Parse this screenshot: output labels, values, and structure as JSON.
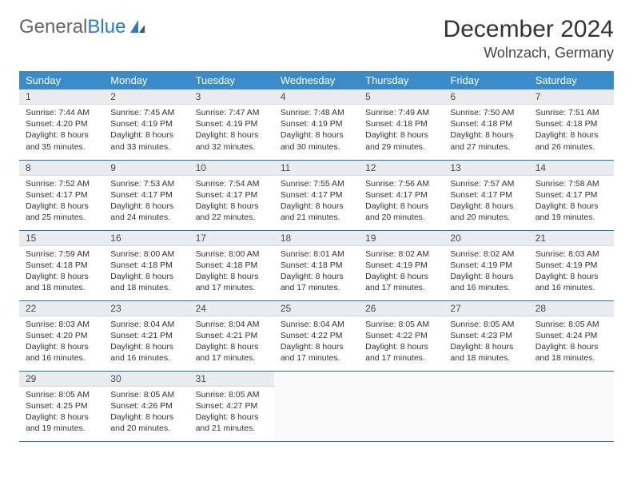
{
  "brand": {
    "part1": "General",
    "part2": "Blue"
  },
  "title": "December 2024",
  "location": "Wolnzach, Germany",
  "colors": {
    "header_bg": "#3b8bc9",
    "header_text": "#ffffff",
    "daynum_bg": "#e9edf0",
    "row_border": "#2b6fa8",
    "brand_blue": "#2b7bbf",
    "brand_gray": "#666666"
  },
  "weekdays": [
    "Sunday",
    "Monday",
    "Tuesday",
    "Wednesday",
    "Thursday",
    "Friday",
    "Saturday"
  ],
  "weeks": [
    [
      {
        "n": "1",
        "sr": "Sunrise: 7:44 AM",
        "ss": "Sunset: 4:20 PM",
        "d1": "Daylight: 8 hours",
        "d2": "and 35 minutes."
      },
      {
        "n": "2",
        "sr": "Sunrise: 7:45 AM",
        "ss": "Sunset: 4:19 PM",
        "d1": "Daylight: 8 hours",
        "d2": "and 33 minutes."
      },
      {
        "n": "3",
        "sr": "Sunrise: 7:47 AM",
        "ss": "Sunset: 4:19 PM",
        "d1": "Daylight: 8 hours",
        "d2": "and 32 minutes."
      },
      {
        "n": "4",
        "sr": "Sunrise: 7:48 AM",
        "ss": "Sunset: 4:19 PM",
        "d1": "Daylight: 8 hours",
        "d2": "and 30 minutes."
      },
      {
        "n": "5",
        "sr": "Sunrise: 7:49 AM",
        "ss": "Sunset: 4:18 PM",
        "d1": "Daylight: 8 hours",
        "d2": "and 29 minutes."
      },
      {
        "n": "6",
        "sr": "Sunrise: 7:50 AM",
        "ss": "Sunset: 4:18 PM",
        "d1": "Daylight: 8 hours",
        "d2": "and 27 minutes."
      },
      {
        "n": "7",
        "sr": "Sunrise: 7:51 AM",
        "ss": "Sunset: 4:18 PM",
        "d1": "Daylight: 8 hours",
        "d2": "and 26 minutes."
      }
    ],
    [
      {
        "n": "8",
        "sr": "Sunrise: 7:52 AM",
        "ss": "Sunset: 4:17 PM",
        "d1": "Daylight: 8 hours",
        "d2": "and 25 minutes."
      },
      {
        "n": "9",
        "sr": "Sunrise: 7:53 AM",
        "ss": "Sunset: 4:17 PM",
        "d1": "Daylight: 8 hours",
        "d2": "and 24 minutes."
      },
      {
        "n": "10",
        "sr": "Sunrise: 7:54 AM",
        "ss": "Sunset: 4:17 PM",
        "d1": "Daylight: 8 hours",
        "d2": "and 22 minutes."
      },
      {
        "n": "11",
        "sr": "Sunrise: 7:55 AM",
        "ss": "Sunset: 4:17 PM",
        "d1": "Daylight: 8 hours",
        "d2": "and 21 minutes."
      },
      {
        "n": "12",
        "sr": "Sunrise: 7:56 AM",
        "ss": "Sunset: 4:17 PM",
        "d1": "Daylight: 8 hours",
        "d2": "and 20 minutes."
      },
      {
        "n": "13",
        "sr": "Sunrise: 7:57 AM",
        "ss": "Sunset: 4:17 PM",
        "d1": "Daylight: 8 hours",
        "d2": "and 20 minutes."
      },
      {
        "n": "14",
        "sr": "Sunrise: 7:58 AM",
        "ss": "Sunset: 4:17 PM",
        "d1": "Daylight: 8 hours",
        "d2": "and 19 minutes."
      }
    ],
    [
      {
        "n": "15",
        "sr": "Sunrise: 7:59 AM",
        "ss": "Sunset: 4:18 PM",
        "d1": "Daylight: 8 hours",
        "d2": "and 18 minutes."
      },
      {
        "n": "16",
        "sr": "Sunrise: 8:00 AM",
        "ss": "Sunset: 4:18 PM",
        "d1": "Daylight: 8 hours",
        "d2": "and 18 minutes."
      },
      {
        "n": "17",
        "sr": "Sunrise: 8:00 AM",
        "ss": "Sunset: 4:18 PM",
        "d1": "Daylight: 8 hours",
        "d2": "and 17 minutes."
      },
      {
        "n": "18",
        "sr": "Sunrise: 8:01 AM",
        "ss": "Sunset: 4:18 PM",
        "d1": "Daylight: 8 hours",
        "d2": "and 17 minutes."
      },
      {
        "n": "19",
        "sr": "Sunrise: 8:02 AM",
        "ss": "Sunset: 4:19 PM",
        "d1": "Daylight: 8 hours",
        "d2": "and 17 minutes."
      },
      {
        "n": "20",
        "sr": "Sunrise: 8:02 AM",
        "ss": "Sunset: 4:19 PM",
        "d1": "Daylight: 8 hours",
        "d2": "and 16 minutes."
      },
      {
        "n": "21",
        "sr": "Sunrise: 8:03 AM",
        "ss": "Sunset: 4:19 PM",
        "d1": "Daylight: 8 hours",
        "d2": "and 16 minutes."
      }
    ],
    [
      {
        "n": "22",
        "sr": "Sunrise: 8:03 AM",
        "ss": "Sunset: 4:20 PM",
        "d1": "Daylight: 8 hours",
        "d2": "and 16 minutes."
      },
      {
        "n": "23",
        "sr": "Sunrise: 8:04 AM",
        "ss": "Sunset: 4:21 PM",
        "d1": "Daylight: 8 hours",
        "d2": "and 16 minutes."
      },
      {
        "n": "24",
        "sr": "Sunrise: 8:04 AM",
        "ss": "Sunset: 4:21 PM",
        "d1": "Daylight: 8 hours",
        "d2": "and 17 minutes."
      },
      {
        "n": "25",
        "sr": "Sunrise: 8:04 AM",
        "ss": "Sunset: 4:22 PM",
        "d1": "Daylight: 8 hours",
        "d2": "and 17 minutes."
      },
      {
        "n": "26",
        "sr": "Sunrise: 8:05 AM",
        "ss": "Sunset: 4:22 PM",
        "d1": "Daylight: 8 hours",
        "d2": "and 17 minutes."
      },
      {
        "n": "27",
        "sr": "Sunrise: 8:05 AM",
        "ss": "Sunset: 4:23 PM",
        "d1": "Daylight: 8 hours",
        "d2": "and 18 minutes."
      },
      {
        "n": "28",
        "sr": "Sunrise: 8:05 AM",
        "ss": "Sunset: 4:24 PM",
        "d1": "Daylight: 8 hours",
        "d2": "and 18 minutes."
      }
    ],
    [
      {
        "n": "29",
        "sr": "Sunrise: 8:05 AM",
        "ss": "Sunset: 4:25 PM",
        "d1": "Daylight: 8 hours",
        "d2": "and 19 minutes."
      },
      {
        "n": "30",
        "sr": "Sunrise: 8:05 AM",
        "ss": "Sunset: 4:26 PM",
        "d1": "Daylight: 8 hours",
        "d2": "and 20 minutes."
      },
      {
        "n": "31",
        "sr": "Sunrise: 8:05 AM",
        "ss": "Sunset: 4:27 PM",
        "d1": "Daylight: 8 hours",
        "d2": "and 21 minutes."
      },
      null,
      null,
      null,
      null
    ]
  ]
}
